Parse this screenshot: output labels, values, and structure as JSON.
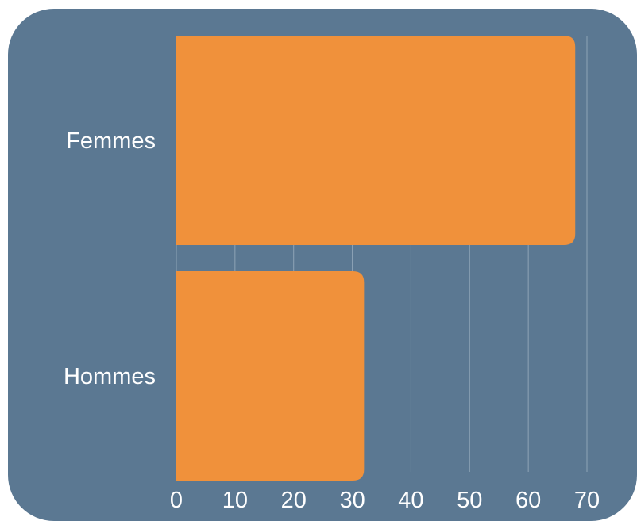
{
  "chart_data": {
    "type": "bar",
    "orientation": "horizontal",
    "categories": [
      "Femmes",
      "Hommes"
    ],
    "values": [
      68,
      32
    ],
    "xlim": [
      0,
      70
    ],
    "xticks": [
      0,
      10,
      20,
      30,
      40,
      50,
      60,
      70
    ],
    "grid": true,
    "colors": {
      "background": "#5b7892",
      "bar": "#f0913b",
      "grid": "#8ea3b6",
      "text": "#ffffff"
    }
  }
}
